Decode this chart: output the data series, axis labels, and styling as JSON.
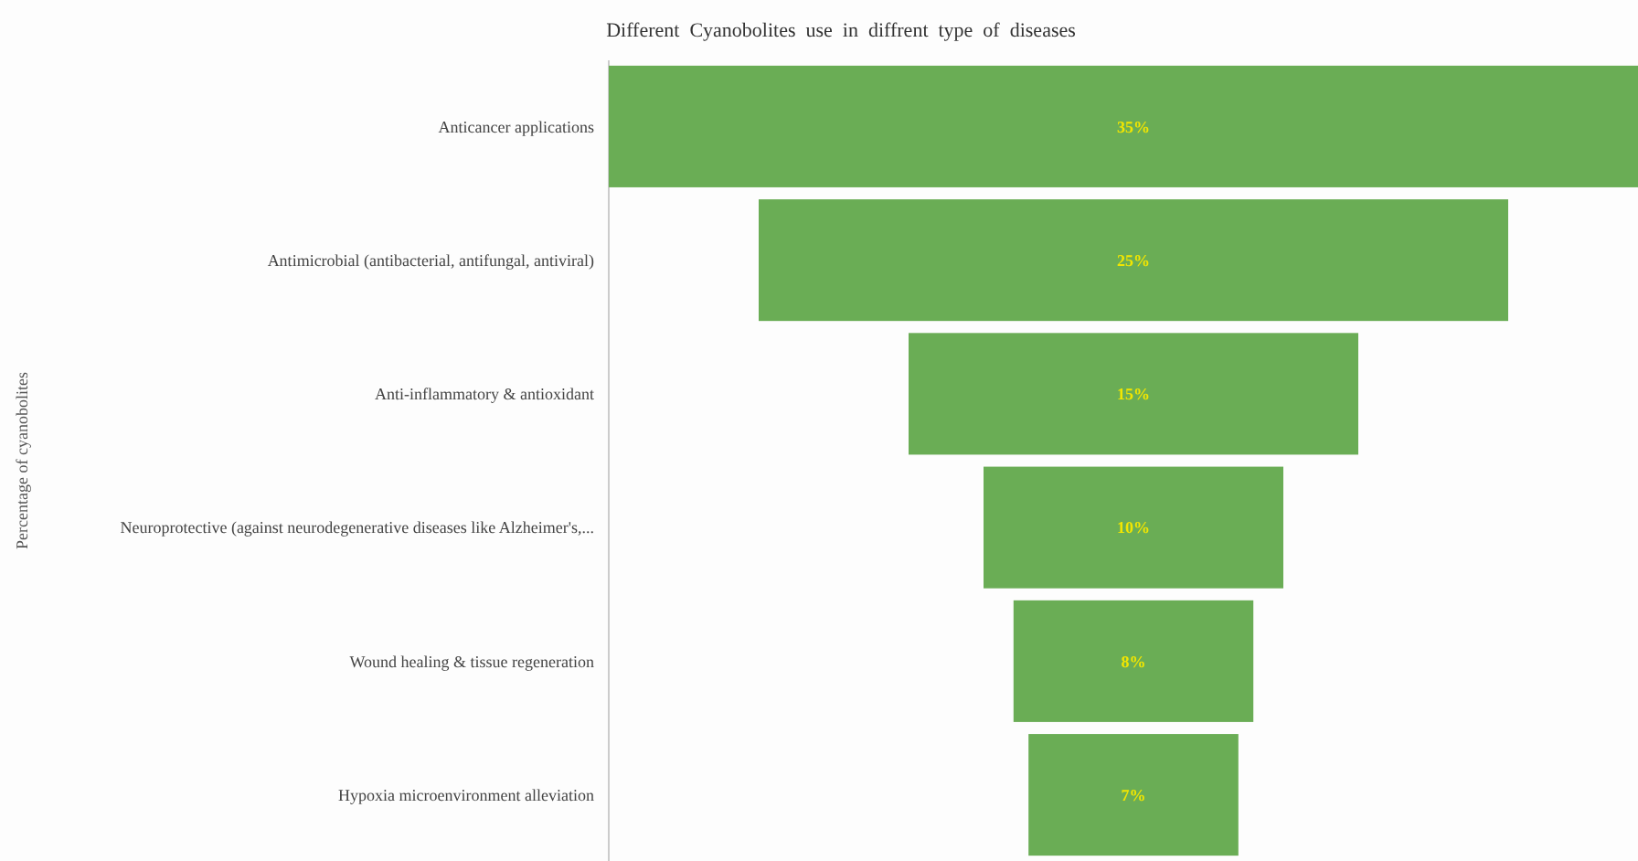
{
  "chart_data": {
    "type": "other",
    "title": "Different  Cyanobolites  use  in  diffrent  type  of  diseases",
    "ylabel": "Percentage of cyanobolites",
    "categories": [
      "Anticancer applications",
      "Antimicrobial (antibacterial, antifungal, antiviral)",
      "Anti-inflammatory & antioxidant",
      "Neuroprotective (against neurodegenerative diseases like Alzheimer's,...",
      "Wound healing & tissue regeneration",
      "Hypoxia microenvironment alleviation"
    ],
    "values": [
      35,
      25,
      15,
      10,
      8,
      7
    ],
    "value_labels": [
      "35%",
      "25%",
      "15%",
      "10%",
      "8%",
      "7%"
    ],
    "color": "#6aad55"
  }
}
